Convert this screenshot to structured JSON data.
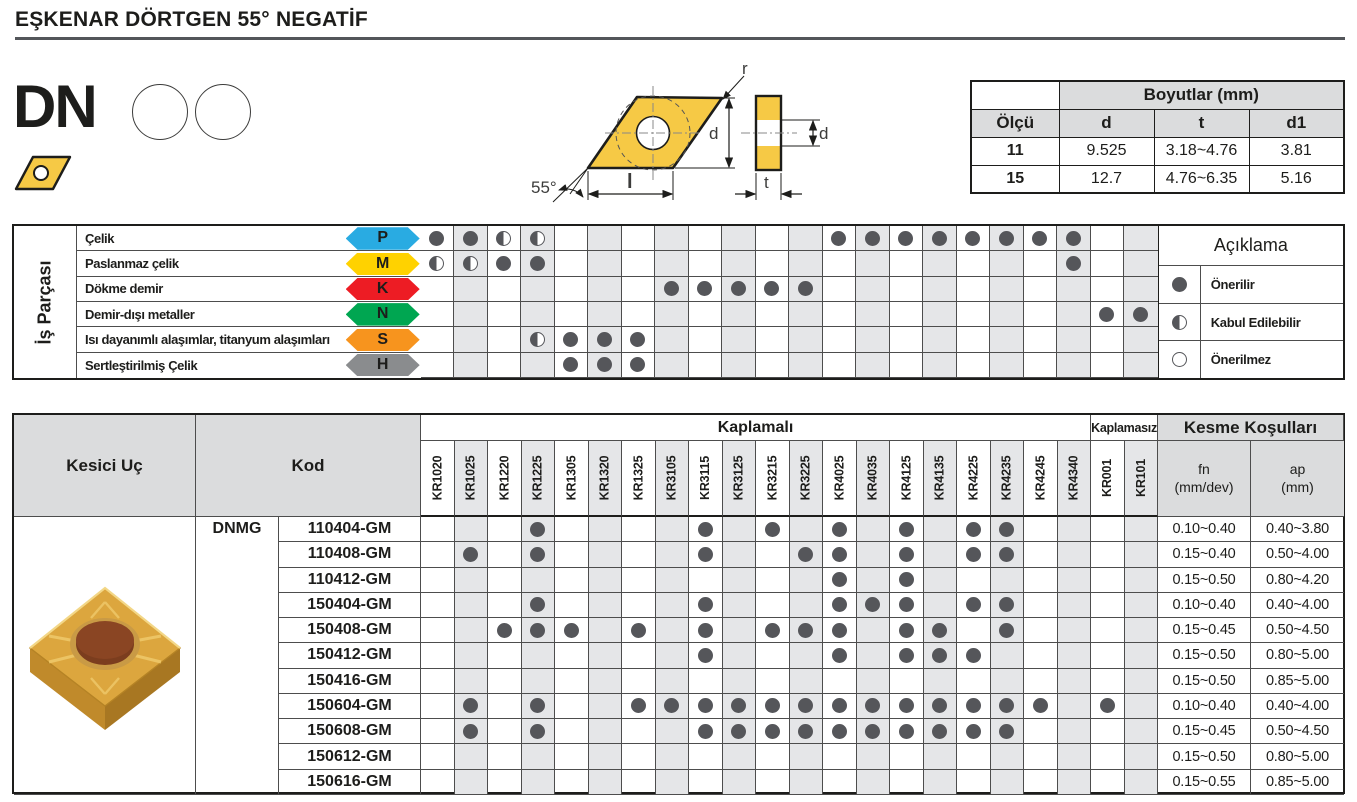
{
  "page": {
    "title": "EŞKENAR DÖRTGEN 55° NEGATİF"
  },
  "product": {
    "code": "DN"
  },
  "drawing": {
    "angle_label": "55°",
    "r_label": "r",
    "d_label": "d",
    "l_label": "l",
    "t_label": "t",
    "d_hole_label": "d",
    "insert_color": "#F6C945"
  },
  "dimensions_table": {
    "title": "Boyutlar (mm)",
    "size_header": "Ölçü",
    "col_headers": [
      "d",
      "t",
      "d1"
    ],
    "rows": [
      {
        "size": "11",
        "d": "9.525",
        "t": "3.18~4.76",
        "d1": "3.81"
      },
      {
        "size": "15",
        "d": "12.7",
        "t": "4.76~6.35",
        "d1": "5.16"
      }
    ]
  },
  "grades": [
    "KR1020",
    "KR1025",
    "KR1220",
    "KR1225",
    "KR1305",
    "KR1320",
    "KR1325",
    "KR3105",
    "KR3115",
    "KR3125",
    "KR3215",
    "KR3225",
    "KR4025",
    "KR4035",
    "KR4125",
    "KR4135",
    "KR4225",
    "KR4235",
    "KR4245",
    "KR4340",
    "KR001",
    "KR101"
  ],
  "workpiece": {
    "header": "İş Parçası",
    "rows": [
      {
        "material": "Çelik",
        "iso": "P",
        "color": "#29ABE2",
        "ratings": {
          "KR1020": "full",
          "KR1025": "full",
          "KR1220": "half",
          "KR1225": "half",
          "KR4025": "full",
          "KR4035": "full",
          "KR4125": "full",
          "KR4135": "full",
          "KR4225": "full",
          "KR4235": "full",
          "KR4245": "full",
          "KR4340": "full"
        }
      },
      {
        "material": "Paslanmaz çelik",
        "iso": "M",
        "color": "#FFD200",
        "ratings": {
          "KR1020": "half",
          "KR1025": "half",
          "KR1220": "full",
          "KR1225": "full",
          "KR4340": "full"
        }
      },
      {
        "material": "Dökme demir",
        "iso": "K",
        "color": "#ED1C24",
        "ratings": {
          "KR3105": "full",
          "KR3115": "full",
          "KR3125": "full",
          "KR3215": "full",
          "KR3225": "full"
        }
      },
      {
        "material": "Demir-dışı metaller",
        "iso": "N",
        "color": "#00A651",
        "ratings": {
          "KR001": "full",
          "KR101": "full"
        }
      },
      {
        "material": "Isı dayanımlı alaşımlar, titanyum alaşımları",
        "iso": "S",
        "color": "#F7941E",
        "ratings": {
          "KR1225": "half",
          "KR1305": "full",
          "KR1320": "full",
          "KR1325": "full"
        }
      },
      {
        "material": "Sertleştirilmiş Çelik",
        "iso": "H",
        "color": "#8A8C8E",
        "ratings": {
          "KR1305": "full",
          "KR1320": "full",
          "KR1325": "full"
        }
      }
    ],
    "legend": {
      "title": "Açıklama",
      "items": [
        {
          "symbol": "full",
          "label": "Önerilir"
        },
        {
          "symbol": "half",
          "label": "Kabul Edilebilir"
        },
        {
          "symbol": "empty",
          "label": "Önerilmez"
        }
      ]
    }
  },
  "inserts": {
    "tool_header": "Kesici Uç",
    "code_header": "Kod",
    "coated_header": "Kaplamalı",
    "uncoated_header": "Kaplamasız",
    "conditions_header": "Kesme Koşulları",
    "fn_label": "fn",
    "fn_unit": "(mm/dev)",
    "ap_label": "ap",
    "ap_unit": "(mm)",
    "series": "DNMG",
    "coated_count": 20,
    "rows": [
      {
        "code": "110404-GM",
        "dots": [
          "KR1225",
          "KR3115",
          "KR3215",
          "KR4025",
          "KR4125",
          "KR4225",
          "KR4235"
        ],
        "fn": "0.10~0.40",
        "ap": "0.40~3.80"
      },
      {
        "code": "110408-GM",
        "dots": [
          "KR1025",
          "KR1225",
          "KR3115",
          "KR3225",
          "KR4025",
          "KR4125",
          "KR4225",
          "KR4235"
        ],
        "fn": "0.15~0.40",
        "ap": "0.50~4.00"
      },
      {
        "code": "110412-GM",
        "dots": [
          "KR4025",
          "KR4125"
        ],
        "fn": "0.15~0.50",
        "ap": "0.80~4.20"
      },
      {
        "code": "150404-GM",
        "dots": [
          "KR1225",
          "KR3115",
          "KR4025",
          "KR4035",
          "KR4125",
          "KR4225",
          "KR4235"
        ],
        "fn": "0.10~0.40",
        "ap": "0.40~4.00"
      },
      {
        "code": "150408-GM",
        "dots": [
          "KR1220",
          "KR1225",
          "KR1305",
          "KR1325",
          "KR3115",
          "KR3215",
          "KR3225",
          "KR4025",
          "KR4125",
          "KR4135",
          "KR4235"
        ],
        "fn": "0.15~0.45",
        "ap": "0.50~4.50"
      },
      {
        "code": "150412-GM",
        "dots": [
          "KR3115",
          "KR4025",
          "KR4125",
          "KR4135",
          "KR4225"
        ],
        "fn": "0.15~0.50",
        "ap": "0.80~5.00"
      },
      {
        "code": "150416-GM",
        "dots": [],
        "fn": "0.15~0.50",
        "ap": "0.85~5.00"
      },
      {
        "code": "150604-GM",
        "dots": [
          "KR1025",
          "KR1225",
          "KR1325",
          "KR3105",
          "KR3115",
          "KR3125",
          "KR3215",
          "KR3225",
          "KR4025",
          "KR4035",
          "KR4125",
          "KR4135",
          "KR4225",
          "KR4235",
          "KR4245",
          "KR001"
        ],
        "fn": "0.10~0.40",
        "ap": "0.40~4.00"
      },
      {
        "code": "150608-GM",
        "dots": [
          "KR1025",
          "KR1225",
          "KR3115",
          "KR3125",
          "KR3215",
          "KR3225",
          "KR4025",
          "KR4035",
          "KR4125",
          "KR4135",
          "KR4225",
          "KR4235"
        ],
        "fn": "0.15~0.45",
        "ap": "0.50~4.50"
      },
      {
        "code": "150612-GM",
        "dots": [],
        "fn": "0.15~0.50",
        "ap": "0.80~5.00"
      },
      {
        "code": "150616-GM",
        "dots": [],
        "fn": "0.15~0.55",
        "ap": "0.85~5.00"
      }
    ]
  },
  "colors": {
    "dot": "#55565A",
    "shaded_column": "#E5E6E8",
    "header_bg": "#DBDCDD",
    "border_dark": "#1D1D1B"
  }
}
